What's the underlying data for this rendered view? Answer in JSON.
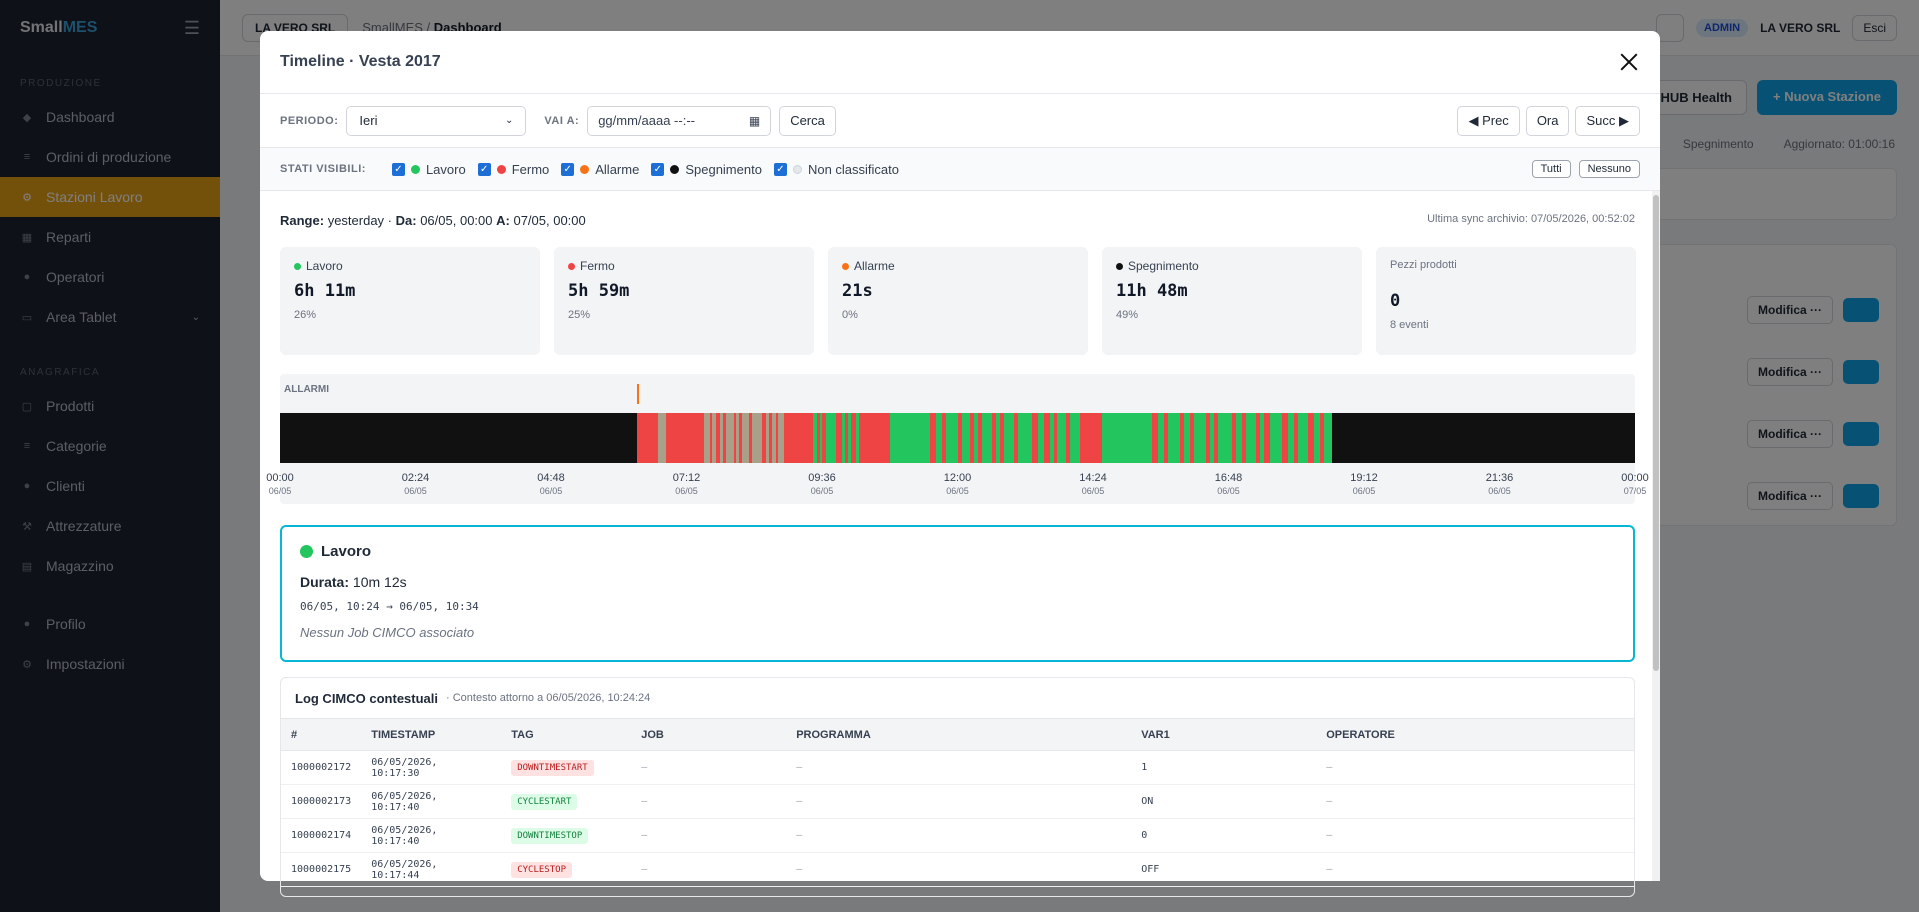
{
  "sidebar": {
    "brand_a": "Small",
    "brand_b": "MES",
    "section_1": "PRODUZIONE",
    "section_2": "ANAGRAFICA",
    "items": [
      {
        "label": "Dashboard",
        "icon": "diamond-icon"
      },
      {
        "label": "Ordini di produzione",
        "icon": "list-icon"
      },
      {
        "label": "Stazioni Lavoro",
        "icon": "gear-icon"
      },
      {
        "label": "Reparti",
        "icon": "grid-icon"
      },
      {
        "label": "Operatori",
        "icon": "user-icon"
      },
      {
        "label": "Area Tablet",
        "icon": "monitor-icon"
      }
    ],
    "items2": [
      {
        "label": "Prodotti",
        "icon": "box-icon"
      },
      {
        "label": "Categorie",
        "icon": "list-icon"
      },
      {
        "label": "Clienti",
        "icon": "user-icon"
      },
      {
        "label": "Attrezzature",
        "icon": "tool-icon"
      },
      {
        "label": "Magazzino",
        "icon": "warehouse-icon"
      }
    ],
    "items3": [
      {
        "label": "Profilo",
        "icon": "user-icon"
      },
      {
        "label": "Impostazioni",
        "icon": "gear-icon"
      }
    ]
  },
  "topbar": {
    "tenant": "LA VERO SRL",
    "crumb_1": "SmallMES",
    "crumb_2": "Dashboard",
    "role": "ADMIN",
    "company": "LA VERO SRL",
    "logout": "Esci"
  },
  "page": {
    "hub_health": "HUB Health",
    "new_station": "+ Nuova Stazione",
    "legend_off": "Spegnimento",
    "updated": "Aggiornato: 01:00:16",
    "edit_label": "Modifica ···"
  },
  "modal": {
    "title": "Timeline · Vesta 2017",
    "period_label": "PERIODO:",
    "period_value": "Ieri",
    "goto_label": "VAI A:",
    "date_placeholder": "gg/mm/aaaa --:--",
    "search": "Cerca",
    "prev": "◀ Prec",
    "now": "Ora",
    "next": "Succ ▶",
    "states_label": "STATI VISIBILI:",
    "states": [
      {
        "label": "Lavoro",
        "color": "#22c55e"
      },
      {
        "label": "Fermo",
        "color": "#ef4444"
      },
      {
        "label": "Allarme",
        "color": "#f97316"
      },
      {
        "label": "Spegnimento",
        "color": "#111111"
      },
      {
        "label": "Non classificato",
        "color": "#e5e7eb"
      }
    ],
    "all": "Tutti",
    "none": "Nessuno",
    "range_label": "Range:",
    "range_value": "yesterday",
    "from_label": "Da:",
    "from_value": "06/05, 00:00",
    "to_label": "A:",
    "to_value": "07/05, 00:00",
    "sync": "Ultima sync archivio: 07/05/2026, 00:52:02"
  },
  "stats": [
    {
      "label": "Lavoro",
      "color": "#22c55e",
      "value": "6h 11m",
      "sub": "26%"
    },
    {
      "label": "Fermo",
      "color": "#ef4444",
      "value": "5h 59m",
      "sub": "25%"
    },
    {
      "label": "Allarme",
      "color": "#f97316",
      "value": "21s",
      "sub": "0%"
    },
    {
      "label": "Spegnimento",
      "color": "#111111",
      "value": "11h 48m",
      "sub": "49%"
    },
    {
      "label": "Pezzi prodotti",
      "color": "",
      "value": "0",
      "sub": "8 eventi"
    }
  ],
  "timeline": {
    "alarm_label": "ALLARMI",
    "ticks": [
      {
        "t": "00:00",
        "d": "06/05"
      },
      {
        "t": "02:24",
        "d": "06/05"
      },
      {
        "t": "04:48",
        "d": "06/05"
      },
      {
        "t": "07:12",
        "d": "06/05"
      },
      {
        "t": "09:36",
        "d": "06/05"
      },
      {
        "t": "12:00",
        "d": "06/05"
      },
      {
        "t": "14:24",
        "d": "06/05"
      },
      {
        "t": "16:48",
        "d": "06/05"
      },
      {
        "t": "19:12",
        "d": "06/05"
      },
      {
        "t": "21:36",
        "d": "06/05"
      },
      {
        "t": "00:00",
        "d": "07/05"
      }
    ]
  },
  "detail": {
    "state": "Lavoro",
    "color": "#22c55e",
    "duration_label": "Durata:",
    "duration_value": "10m 12s",
    "range": "06/05, 10:24 → 06/05, 10:34",
    "note": "Nessun Job CIMCO associato"
  },
  "log": {
    "title": "Log CIMCO contestuali",
    "context": "· Contesto attorno a 06/05/2026, 10:24:24",
    "columns": [
      "#",
      "TIMESTAMP",
      "TAG",
      "JOB",
      "PROGRAMMA",
      "VAR1",
      "OPERATORE"
    ],
    "rows": [
      {
        "id": "1000002172",
        "ts": "06/05/2026, 10:17:30",
        "tag": "DOWNTIMESTART",
        "tag_color": "red",
        "job": "—",
        "prog": "—",
        "var1": "1",
        "op": "—"
      },
      {
        "id": "1000002173",
        "ts": "06/05/2026, 10:17:40",
        "tag": "CYCLESTART",
        "tag_color": "green",
        "job": "—",
        "prog": "—",
        "var1": "ON",
        "op": "—"
      },
      {
        "id": "1000002174",
        "ts": "06/05/2026, 10:17:40",
        "tag": "DOWNTIMESTOP",
        "tag_color": "green",
        "job": "—",
        "prog": "—",
        "var1": "0",
        "op": "—"
      },
      {
        "id": "1000002175",
        "ts": "06/05/2026, 10:17:44",
        "tag": "CYCLESTOP",
        "tag_color": "red",
        "job": "—",
        "prog": "—",
        "var1": "OFF",
        "op": "—"
      }
    ]
  }
}
